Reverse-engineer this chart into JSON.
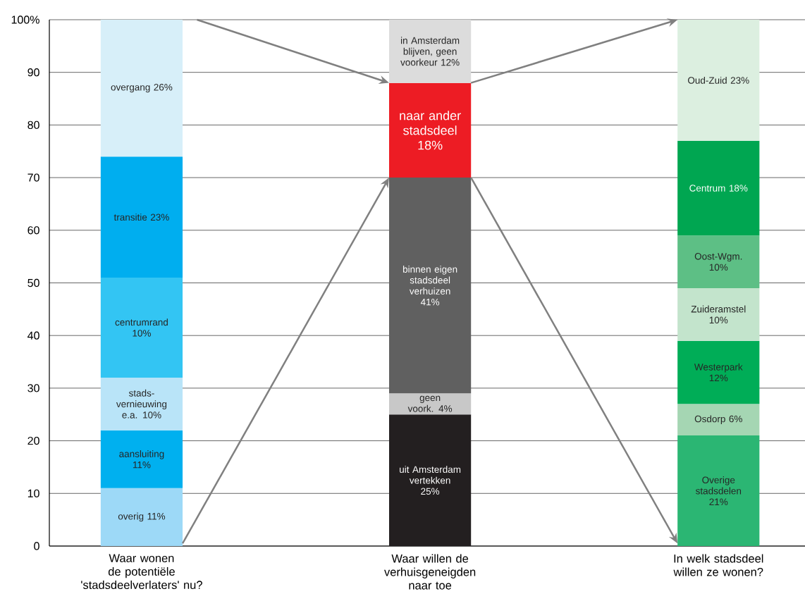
{
  "chart_data": {
    "type": "bar",
    "stacked": true,
    "categories": [
      "Waar wonen de potentiële 'stadsdeelverlaters' nu?",
      "Waar willen de verhuisgeneigden naar toe",
      "In welk stadsdeel willen ze wonen?"
    ],
    "ylim": [
      0,
      100
    ],
    "yticks": [
      0,
      10,
      20,
      30,
      40,
      50,
      60,
      70,
      80,
      90,
      {
        "value": 100,
        "label": "100%"
      }
    ],
    "grid": "y",
    "series": [
      {
        "values": [
          11,
          25,
          21
        ],
        "colors": [
          "#9dd9f7",
          "#231f20",
          "#2bb673"
        ],
        "value_labels": [
          "overig 11%",
          "uit Amsterdam vertekken 25%",
          "Overige stadsdelen 21%"
        ]
      },
      {
        "values": [
          11,
          4,
          6
        ],
        "colors": [
          "#00b0ef",
          "#c8c8c8",
          "#a5d6b3"
        ],
        "value_labels": [
          "aansluiting 11%",
          "geen voork. 4%",
          "Osdorp 6%"
        ]
      },
      {
        "values": [
          10,
          41,
          12
        ],
        "colors": [
          "#b9e4f8",
          "#606060",
          "#00ad57"
        ],
        "value_labels": [
          "stads- vernieuwing e.a. 10%",
          "binnen eigen stadsdeel verhuizen 41%",
          "Westerpark 12%"
        ]
      },
      {
        "values": [
          19,
          18,
          10
        ],
        "colors": [
          "#33c5f3",
          "#ed1c24",
          "#c3e4cc"
        ],
        "value_labels": [
          "centrumrand 10%",
          "naar ander stadsdeel 18%",
          "Zuideramstel 10%"
        ]
      },
      {
        "values": [
          23,
          12,
          10
        ],
        "colors": [
          "#00aeef",
          "#dcdcdc",
          "#5dbf85"
        ],
        "value_labels": [
          "transitie 23%",
          "in Amsterdam blijven, geen voorkeur 12%",
          "Oost-Wgm. 10%"
        ]
      },
      {
        "values": [
          26,
          null,
          18
        ],
        "colors": [
          "#d7eff9",
          null,
          "#00a651"
        ],
        "value_labels": [
          "overgang 26%",
          null,
          "Centrum 18%"
        ]
      },
      {
        "values": [
          null,
          null,
          23
        ],
        "colors": [
          null,
          null,
          "#dcefe0"
        ],
        "value_labels": [
          null,
          null,
          "Oud-Zuid 23%"
        ]
      }
    ]
  }
}
